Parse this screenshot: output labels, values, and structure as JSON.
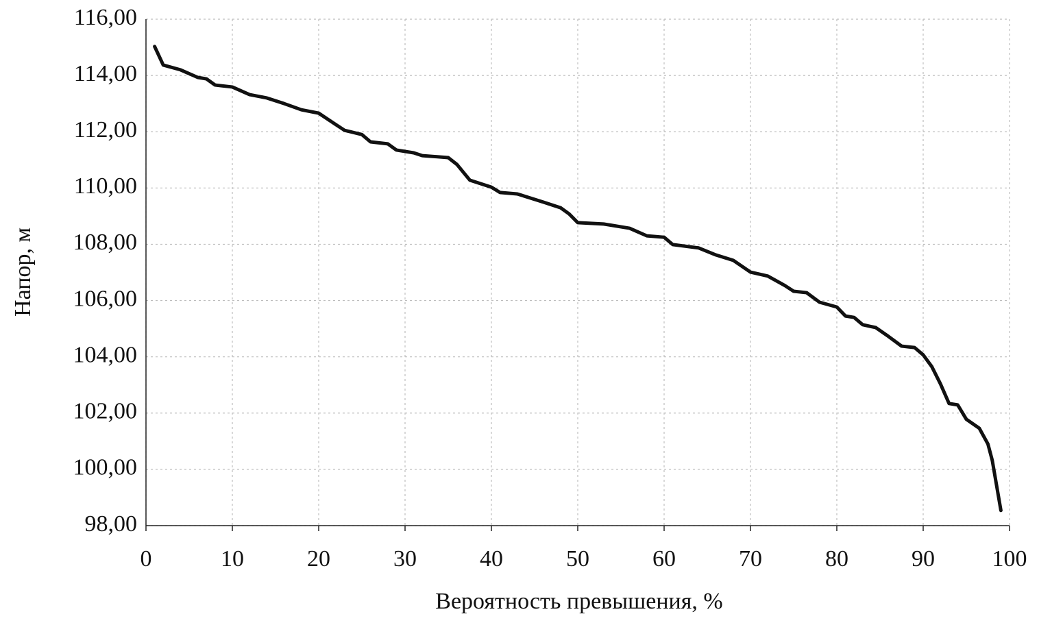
{
  "chart_data": {
    "type": "line",
    "xlabel": "Вероятность превышения, %",
    "ylabel": "Напор, м",
    "x": [
      1,
      2,
      4,
      6,
      7,
      8,
      10,
      12,
      14,
      16,
      18,
      20,
      22,
      23,
      25,
      26,
      28,
      29,
      31,
      32,
      35,
      36,
      37.5,
      40,
      41,
      43,
      46,
      48,
      49,
      50,
      53,
      56,
      58,
      60,
      61,
      64,
      66,
      68,
      70,
      72,
      74,
      75,
      76.5,
      78,
      80,
      81,
      82,
      83,
      84.5,
      86,
      87.5,
      89,
      90,
      91,
      92,
      93,
      94,
      95,
      96.5,
      97.5,
      98,
      99
    ],
    "series": [
      {
        "color": "#111111",
        "values": [
          115.03,
          114.37,
          114.2,
          113.93,
          113.88,
          113.66,
          113.59,
          113.32,
          113.2,
          113.0,
          112.78,
          112.66,
          112.25,
          112.05,
          111.9,
          111.64,
          111.57,
          111.35,
          111.25,
          111.15,
          111.08,
          110.84,
          110.28,
          110.03,
          109.84,
          109.79,
          109.5,
          109.3,
          109.08,
          108.77,
          108.72,
          108.57,
          108.3,
          108.25,
          107.99,
          107.87,
          107.62,
          107.43,
          107.01,
          106.87,
          106.53,
          106.33,
          106.28,
          105.94,
          105.77,
          105.45,
          105.4,
          105.14,
          105.04,
          104.72,
          104.38,
          104.33,
          104.07,
          103.65,
          103.04,
          102.34,
          102.29,
          101.78,
          101.46,
          100.9,
          100.32,
          98.54
        ]
      }
    ],
    "xlim": [
      0,
      100
    ],
    "xticks": [
      0,
      10,
      20,
      30,
      40,
      50,
      60,
      70,
      80,
      90,
      100
    ],
    "ylim": [
      98,
      116
    ],
    "yticks": [
      {
        "value": 98,
        "label": "98,00"
      },
      {
        "value": 100,
        "label": "100,00"
      },
      {
        "value": 102,
        "label": "102,00"
      },
      {
        "value": 104,
        "label": "104,00"
      },
      {
        "value": 106,
        "label": "106,00"
      },
      {
        "value": 108,
        "label": "108,00"
      },
      {
        "value": 110,
        "label": "110,00"
      },
      {
        "value": 112,
        "label": "112,00"
      },
      {
        "value": 114,
        "label": "114,00"
      },
      {
        "value": 116,
        "label": "116,00"
      }
    ],
    "grid": true
  }
}
